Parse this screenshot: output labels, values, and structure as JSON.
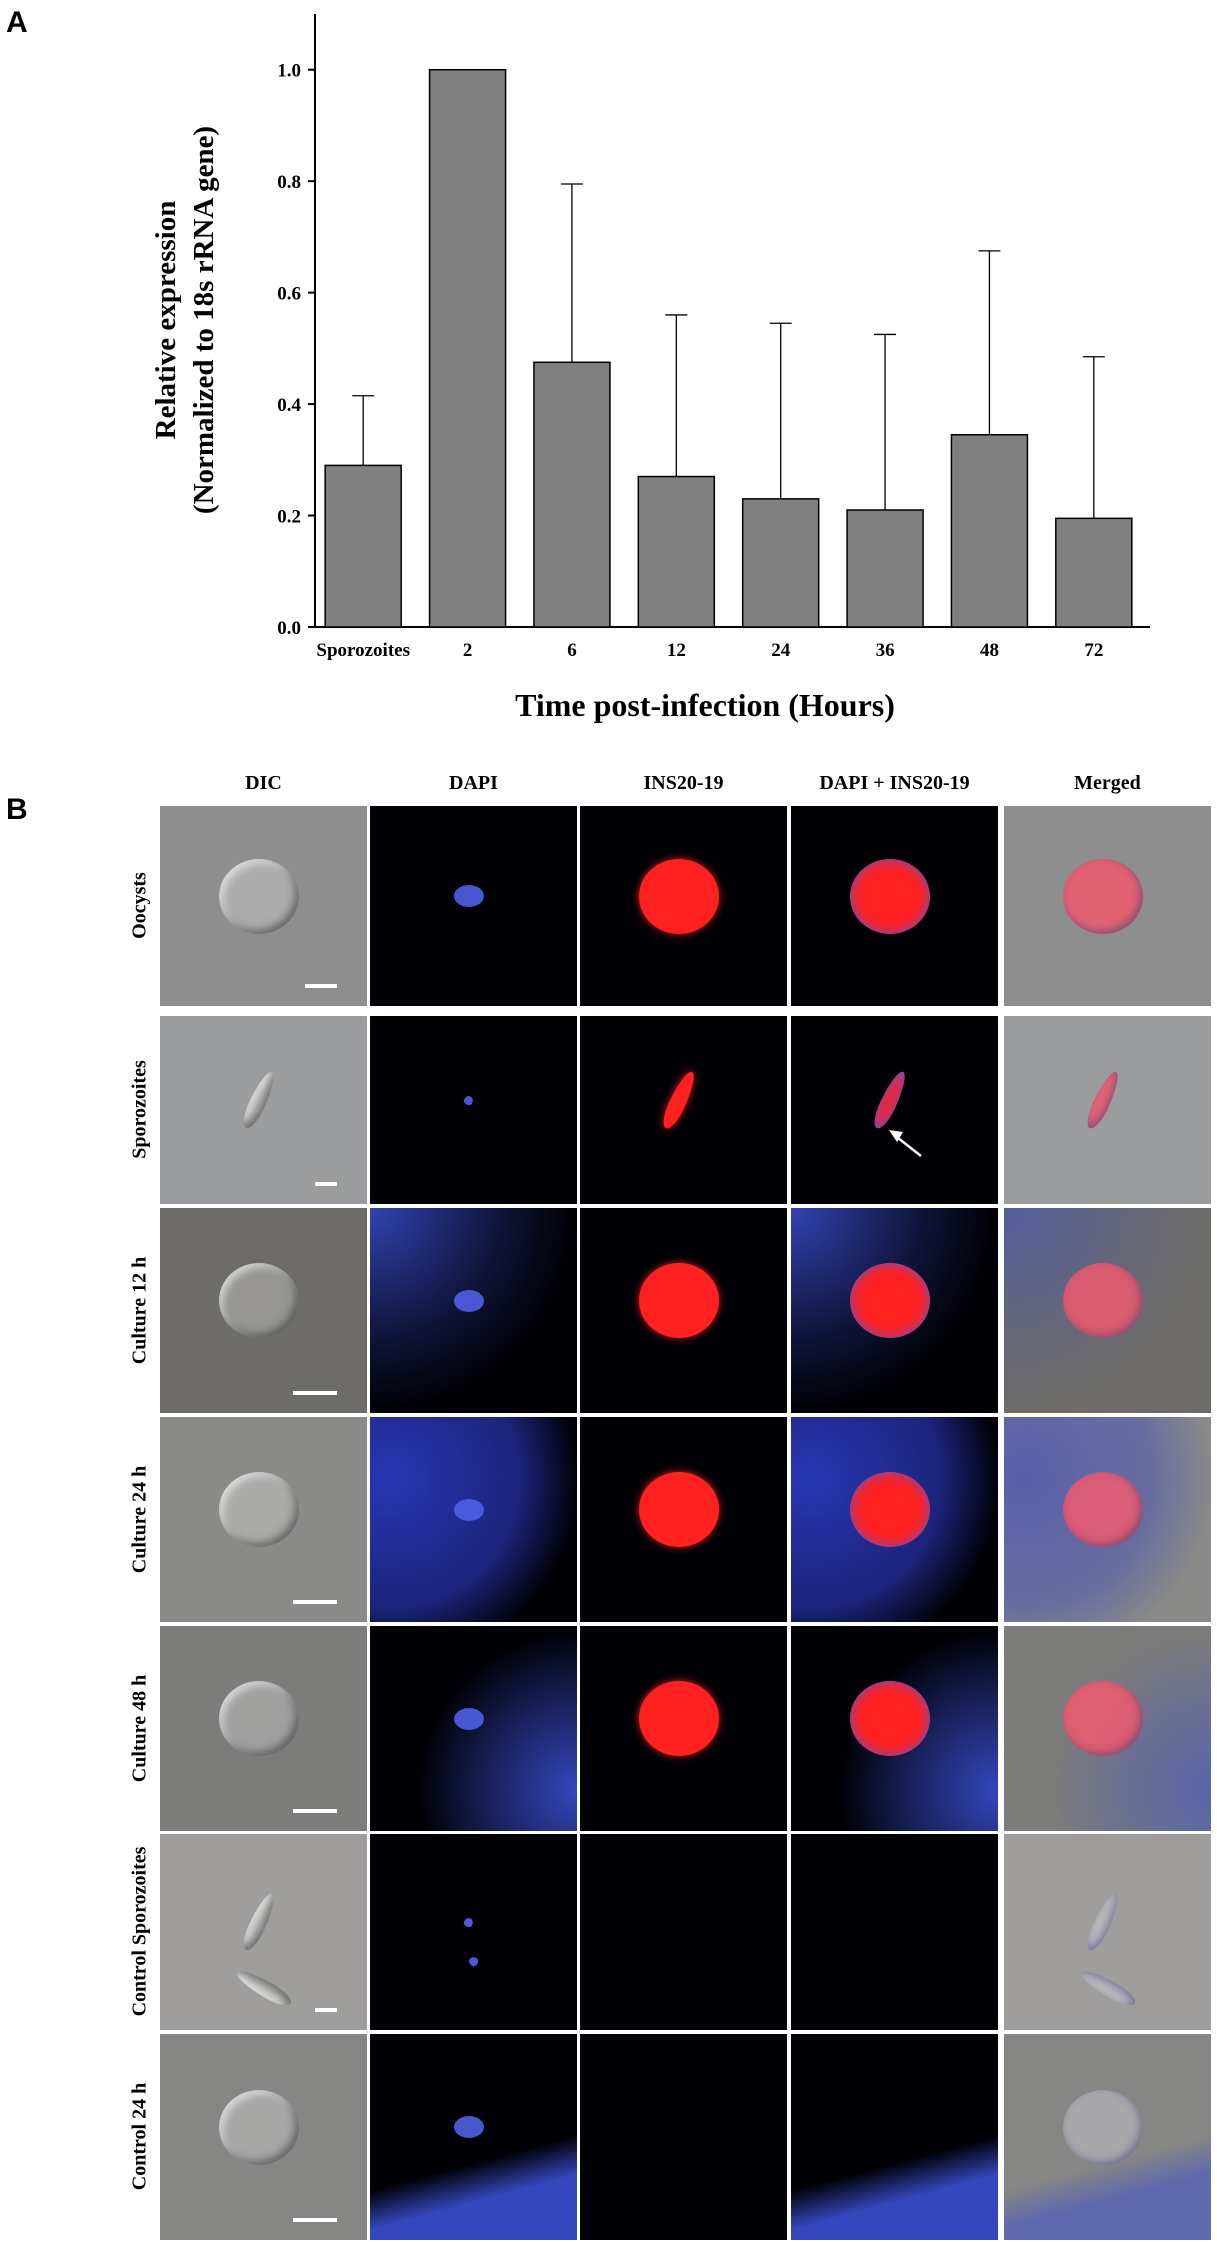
{
  "panels": {
    "a": "A",
    "b": "B"
  },
  "chart_data": {
    "type": "bar",
    "categories": [
      "Sporozoites",
      "2",
      "6",
      "12",
      "24",
      "36",
      "48",
      "72"
    ],
    "values": [
      0.29,
      1.0,
      0.475,
      0.27,
      0.23,
      0.21,
      0.345,
      0.195
    ],
    "errors_upper": [
      0.415,
      1.0,
      0.795,
      0.56,
      0.545,
      0.525,
      0.675,
      0.485
    ],
    "ylim": [
      0.0,
      1.1
    ],
    "yticks": [
      "0.0",
      "0.2",
      "0.4",
      "0.6",
      "0.8",
      "1.0"
    ],
    "ylabel_line1": "Relative expression",
    "ylabel_line2": "(Normalized to 18s rRNA gene)",
    "xlabel": "Time post-infection (Hours)",
    "bar_color": "#808080",
    "grid": false
  },
  "microscopy": {
    "columns": [
      "DIC",
      "DAPI",
      "INS20-19",
      "DAPI + INS20-19",
      "Merged"
    ],
    "rows": [
      "Oocysts",
      "Sporozoites",
      "Culture 12 h",
      "Culture 24 h",
      "Culture 48 h",
      "Control Sporozoites",
      "Control 24 h"
    ],
    "colors": {
      "dic": "#8a8a8a",
      "dapi": "#3a4fd0",
      "ins": "#ff2020",
      "dark": "#000005"
    }
  }
}
